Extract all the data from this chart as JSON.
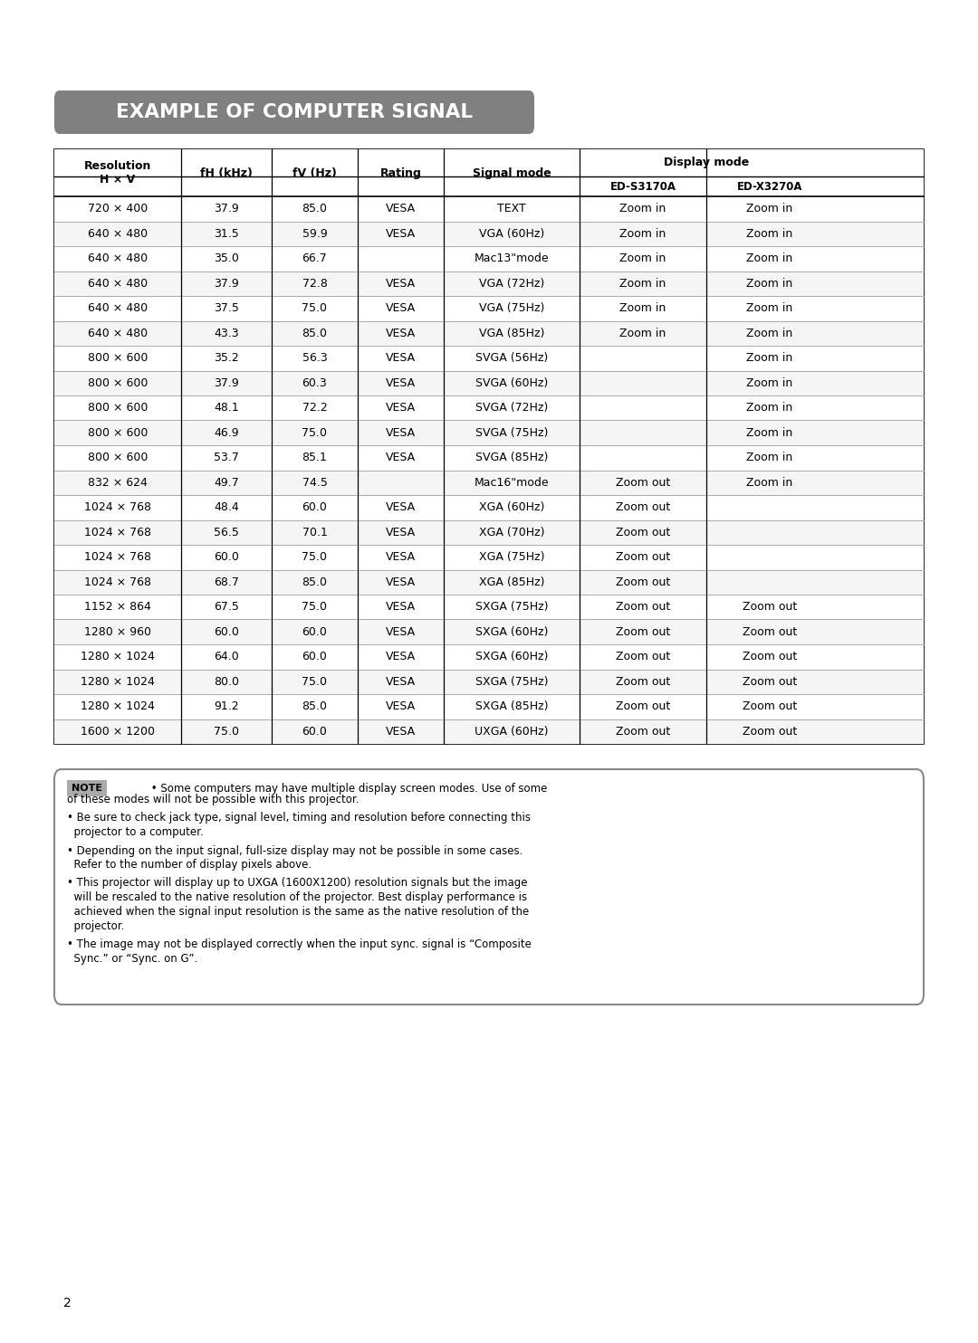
{
  "title": "EXAMPLE OF COMPUTER SIGNAL",
  "title_bg": "#808080",
  "title_color": "#ffffff",
  "col_headers": [
    "Resolution\nH × V",
    "fH (kHz)",
    "fV (Hz)",
    "Rating",
    "Signal mode",
    "Display mode"
  ],
  "sub_headers": [
    "ED-S3170A",
    "ED-X3270A"
  ],
  "rows": [
    [
      "720 × 400",
      "37.9",
      "85.0",
      "VESA",
      "TEXT",
      "Zoom in",
      "Zoom in"
    ],
    [
      "640 × 480",
      "31.5",
      "59.9",
      "VESA",
      "VGA (60Hz)",
      "Zoom in",
      "Zoom in"
    ],
    [
      "640 × 480",
      "35.0",
      "66.7",
      "",
      "Mac13\"mode",
      "Zoom in",
      "Zoom in"
    ],
    [
      "640 × 480",
      "37.9",
      "72.8",
      "VESA",
      "VGA (72Hz)",
      "Zoom in",
      "Zoom in"
    ],
    [
      "640 × 480",
      "37.5",
      "75.0",
      "VESA",
      "VGA (75Hz)",
      "Zoom in",
      "Zoom in"
    ],
    [
      "640 × 480",
      "43.3",
      "85.0",
      "VESA",
      "VGA (85Hz)",
      "Zoom in",
      "Zoom in"
    ],
    [
      "800 × 600",
      "35.2",
      "56.3",
      "VESA",
      "SVGA (56Hz)",
      "",
      "Zoom in"
    ],
    [
      "800 × 600",
      "37.9",
      "60.3",
      "VESA",
      "SVGA (60Hz)",
      "",
      "Zoom in"
    ],
    [
      "800 × 600",
      "48.1",
      "72.2",
      "VESA",
      "SVGA (72Hz)",
      "",
      "Zoom in"
    ],
    [
      "800 × 600",
      "46.9",
      "75.0",
      "VESA",
      "SVGA (75Hz)",
      "",
      "Zoom in"
    ],
    [
      "800 × 600",
      "53.7",
      "85.1",
      "VESA",
      "SVGA (85Hz)",
      "",
      "Zoom in"
    ],
    [
      "832 × 624",
      "49.7",
      "74.5",
      "",
      "Mac16\"mode",
      "Zoom out",
      "Zoom in"
    ],
    [
      "1024 × 768",
      "48.4",
      "60.0",
      "VESA",
      "XGA (60Hz)",
      "Zoom out",
      ""
    ],
    [
      "1024 × 768",
      "56.5",
      "70.1",
      "VESA",
      "XGA (70Hz)",
      "Zoom out",
      ""
    ],
    [
      "1024 × 768",
      "60.0",
      "75.0",
      "VESA",
      "XGA (75Hz)",
      "Zoom out",
      ""
    ],
    [
      "1024 × 768",
      "68.7",
      "85.0",
      "VESA",
      "XGA (85Hz)",
      "Zoom out",
      ""
    ],
    [
      "1152 × 864",
      "67.5",
      "75.0",
      "VESA",
      "SXGA (75Hz)",
      "Zoom out",
      "Zoom out"
    ],
    [
      "1280 × 960",
      "60.0",
      "60.0",
      "VESA",
      "SXGA (60Hz)",
      "Zoom out",
      "Zoom out"
    ],
    [
      "1280 × 1024",
      "64.0",
      "60.0",
      "VESA",
      "SXGA (60Hz)",
      "Zoom out",
      "Zoom out"
    ],
    [
      "1280 × 1024",
      "80.0",
      "75.0",
      "VESA",
      "SXGA (75Hz)",
      "Zoom out",
      "Zoom out"
    ],
    [
      "1280 × 1024",
      "91.2",
      "85.0",
      "VESA",
      "SXGA (85Hz)",
      "Zoom out",
      "Zoom out"
    ],
    [
      "1600 × 1200",
      "75.0",
      "60.0",
      "VESA",
      "UXGA (60Hz)",
      "Zoom out",
      "Zoom out"
    ]
  ],
  "note_text": "NOTE • Some computers may have multiple display screen modes. Use of some of these modes will not be possible with this projector.\n• Be sure to check jack type, signal level, timing and resolution before connecting this\n  projector to a computer.\n• Depending on the input signal, full-size display may not be possible in some cases.\n  Refer to the number of display pixels above.\n• This projector will display up to UXGA (1600X1200) resolution signals but the image\n  will be rescaled to the native resolution of the projector. Best display performance is\n  achieved when the signal input resolution is the same as the native resolution of the\n  projector.\n• The image may not be displayed correctly when the input sync. signal is “Composite\n  Sync.” or “Sync. on G”.",
  "page_number": "2",
  "bg_color": "#ffffff",
  "table_border_color": "#000000",
  "header_bg": "#ffffff",
  "row_bg_even": "#ffffff",
  "row_bg_odd": "#f5f5f5",
  "note_bg": "#ffffff",
  "note_border": "#888888"
}
